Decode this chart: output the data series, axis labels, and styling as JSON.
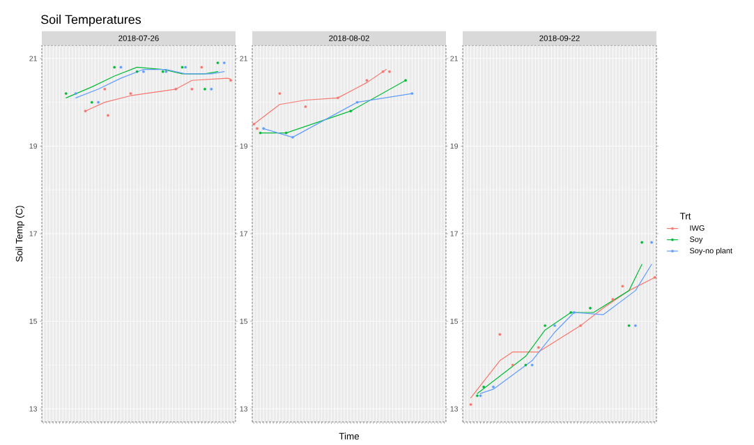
{
  "chart_data": [
    {
      "type": "scatter",
      "title": "Soil Temperatures",
      "subtitle": "2018-07-26",
      "ylabel": "Soil Temp (C)",
      "ylim": [
        12.7,
        21.3
      ],
      "yticks": [
        13,
        15,
        17,
        19,
        21
      ],
      "grid": true,
      "tick_labels": "y",
      "marker": "circle",
      "categories": [
        null,
        null,
        null,
        null,
        null,
        null,
        null,
        null,
        null,
        null,
        null,
        null,
        null,
        null,
        null,
        null,
        null,
        null,
        null,
        null,
        null,
        null,
        null,
        null,
        null,
        null,
        null,
        null,
        null,
        null,
        null,
        null,
        null,
        null,
        null,
        null,
        null,
        null,
        null,
        null,
        null,
        null,
        null,
        null,
        null,
        null,
        null,
        null,
        null,
        null,
        null,
        null,
        null,
        null,
        null,
        null,
        null,
        null,
        null,
        null
      ],
      "series": [
        {
          "color": "#f8766d",
          "values": [
            null,
            null,
            null,
            null,
            null,
            null,
            null,
            null,
            null,
            null,
            null,
            null,
            null,
            19.8,
            null,
            null,
            null,
            null,
            null,
            20.3,
            19.7,
            null,
            null,
            null,
            null,
            null,
            null,
            20.2,
            null,
            null,
            null,
            null,
            null,
            null,
            null,
            null,
            null,
            null,
            null,
            null,
            null,
            20.3,
            null,
            null,
            null,
            null,
            20.3,
            null,
            null,
            20.8,
            null,
            null,
            null,
            null,
            null,
            null,
            null,
            null,
            20.5,
            null
          ]
        },
        {
          "color": "#00ba38",
          "values": [
            null,
            null,
            null,
            null,
            null,
            null,
            null,
            20.2,
            null,
            null,
            null,
            null,
            null,
            null,
            null,
            20.0,
            null,
            null,
            null,
            null,
            null,
            null,
            20.8,
            null,
            null,
            null,
            null,
            null,
            null,
            20.7,
            null,
            null,
            null,
            null,
            null,
            null,
            null,
            20.7,
            null,
            null,
            null,
            null,
            null,
            20.8,
            null,
            null,
            null,
            null,
            null,
            null,
            20.3,
            null,
            null,
            null,
            20.9,
            null,
            null,
            null,
            null,
            null
          ]
        },
        {
          "color": "#619cff",
          "values": [
            null,
            null,
            null,
            null,
            null,
            null,
            null,
            null,
            null,
            null,
            20.2,
            null,
            null,
            null,
            null,
            null,
            null,
            20.0,
            null,
            null,
            null,
            null,
            null,
            null,
            20.8,
            null,
            null,
            null,
            null,
            null,
            null,
            20.7,
            null,
            null,
            null,
            null,
            null,
            null,
            20.7,
            null,
            null,
            null,
            null,
            null,
            20.8,
            null,
            null,
            null,
            null,
            null,
            null,
            null,
            20.3,
            null,
            null,
            null,
            20.9,
            null,
            null,
            null
          ]
        },
        {
          "type": "line",
          "marker": "none",
          "color": "#f8766d",
          "values": [
            null,
            null,
            null,
            null,
            null,
            null,
            null,
            null,
            null,
            null,
            null,
            null,
            null,
            19.8,
            null,
            null,
            null,
            null,
            null,
            20.0,
            null,
            null,
            null,
            null,
            null,
            null,
            null,
            20.15,
            null,
            null,
            null,
            null,
            null,
            null,
            null,
            null,
            null,
            null,
            null,
            null,
            null,
            20.3,
            null,
            null,
            null,
            null,
            20.5,
            null,
            null,
            null,
            null,
            null,
            null,
            null,
            null,
            null,
            null,
            20.55,
            20.53,
            null
          ]
        },
        {
          "type": "line",
          "marker": "none",
          "color": "#00ba38",
          "values": [
            null,
            null,
            null,
            null,
            null,
            null,
            null,
            20.1,
            null,
            null,
            null,
            null,
            null,
            null,
            null,
            20.35,
            null,
            null,
            null,
            null,
            null,
            null,
            20.6,
            null,
            null,
            null,
            null,
            null,
            null,
            20.8,
            null,
            null,
            null,
            null,
            null,
            null,
            null,
            20.75,
            null,
            null,
            null,
            null,
            null,
            20.65,
            null,
            null,
            null,
            null,
            null,
            null,
            20.65,
            null,
            null,
            null,
            20.7,
            null,
            null,
            null,
            null,
            null
          ]
        },
        {
          "type": "line",
          "marker": "none",
          "color": "#619cff",
          "values": [
            null,
            null,
            null,
            null,
            null,
            null,
            null,
            null,
            null,
            null,
            20.1,
            null,
            null,
            null,
            null,
            null,
            null,
            20.3,
            null,
            null,
            null,
            null,
            null,
            null,
            20.55,
            null,
            null,
            null,
            null,
            null,
            null,
            20.75,
            null,
            null,
            null,
            null,
            null,
            null,
            20.75,
            null,
            null,
            null,
            null,
            null,
            20.65,
            null,
            null,
            null,
            null,
            null,
            null,
            null,
            20.65,
            null,
            null,
            null,
            20.7,
            null,
            null,
            null
          ]
        }
      ]
    },
    {
      "type": "scatter",
      "subtitle": "2018-08-02",
      "xlabel": "Time",
      "ylim": [
        12.7,
        21.3
      ],
      "yticks": [
        13,
        15,
        17,
        19,
        21
      ],
      "grid": true,
      "marker": "circle",
      "categories": [
        null,
        null,
        null,
        null,
        null,
        null,
        null,
        null,
        null,
        null,
        null,
        null,
        null,
        null,
        null,
        null,
        null,
        null,
        null,
        null,
        null,
        null,
        null,
        null,
        null,
        null,
        null,
        null,
        null,
        null,
        null,
        null,
        null,
        null,
        null,
        null,
        null,
        null,
        null,
        null,
        null,
        null,
        null,
        null,
        null,
        null,
        null,
        null,
        null,
        null,
        null,
        null,
        null,
        null,
        null,
        null,
        null,
        null,
        null,
        null
      ],
      "series": [
        {
          "color": "#f8766d",
          "values": [
            19.5,
            19.4,
            null,
            null,
            null,
            null,
            null,
            null,
            20.2,
            null,
            null,
            null,
            null,
            null,
            null,
            null,
            19.9,
            null,
            null,
            null,
            null,
            null,
            null,
            null,
            null,
            null,
            20.1,
            null,
            null,
            null,
            null,
            null,
            null,
            null,
            null,
            20.5,
            null,
            null,
            null,
            null,
            20.7,
            null,
            20.7,
            null,
            null,
            null,
            null,
            null,
            null,
            null,
            null,
            null,
            null,
            null,
            null,
            null,
            null,
            null,
            null,
            null
          ]
        },
        {
          "color": "#00ba38",
          "values": [
            null,
            null,
            19.3,
            null,
            null,
            null,
            null,
            null,
            null,
            null,
            19.3,
            null,
            null,
            null,
            null,
            null,
            null,
            null,
            null,
            null,
            null,
            null,
            null,
            null,
            null,
            null,
            null,
            null,
            null,
            null,
            19.8,
            null,
            null,
            null,
            null,
            null,
            null,
            null,
            null,
            null,
            null,
            null,
            null,
            null,
            null,
            null,
            null,
            20.5,
            null,
            null,
            null,
            null,
            null,
            null,
            null,
            null,
            null,
            null,
            null,
            null
          ]
        },
        {
          "color": "#619cff",
          "values": [
            null,
            null,
            null,
            19.4,
            null,
            null,
            null,
            null,
            null,
            null,
            null,
            null,
            19.2,
            null,
            null,
            null,
            null,
            null,
            null,
            null,
            null,
            null,
            null,
            null,
            null,
            null,
            null,
            null,
            null,
            null,
            null,
            null,
            20.0,
            null,
            null,
            null,
            null,
            null,
            null,
            null,
            null,
            null,
            null,
            null,
            null,
            null,
            null,
            null,
            null,
            20.2,
            null,
            null,
            null,
            null,
            null,
            null,
            null,
            null,
            null,
            null
          ]
        },
        {
          "type": "line",
          "marker": "none",
          "color": "#f8766d",
          "values": [
            19.5,
            null,
            null,
            null,
            null,
            null,
            null,
            null,
            19.95,
            null,
            null,
            null,
            null,
            null,
            null,
            null,
            20.05,
            null,
            null,
            null,
            null,
            null,
            null,
            null,
            null,
            null,
            20.1,
            null,
            null,
            null,
            null,
            null,
            null,
            null,
            null,
            20.45,
            null,
            null,
            null,
            null,
            null,
            20.75,
            null,
            null,
            null,
            null,
            null,
            null,
            null,
            null,
            null,
            null,
            null,
            null,
            null,
            null,
            null,
            null,
            null,
            null
          ]
        },
        {
          "type": "line",
          "marker": "none",
          "color": "#00ba38",
          "values": [
            null,
            null,
            19.3,
            null,
            null,
            null,
            null,
            null,
            null,
            null,
            19.3,
            null,
            null,
            null,
            null,
            null,
            null,
            null,
            null,
            null,
            null,
            null,
            null,
            null,
            null,
            null,
            null,
            null,
            null,
            null,
            19.8,
            null,
            null,
            null,
            null,
            null,
            null,
            null,
            null,
            null,
            null,
            null,
            null,
            null,
            null,
            null,
            null,
            20.5,
            null,
            null,
            null,
            null,
            null,
            null,
            null,
            null,
            null,
            null,
            null,
            null
          ]
        },
        {
          "type": "line",
          "marker": "none",
          "color": "#619cff",
          "values": [
            null,
            null,
            null,
            19.4,
            null,
            null,
            null,
            null,
            null,
            null,
            null,
            null,
            19.2,
            null,
            null,
            null,
            null,
            null,
            null,
            null,
            null,
            null,
            null,
            null,
            null,
            null,
            null,
            null,
            null,
            null,
            null,
            null,
            20.0,
            null,
            null,
            null,
            null,
            null,
            null,
            null,
            null,
            null,
            null,
            null,
            null,
            null,
            null,
            null,
            null,
            20.2,
            null,
            null,
            null,
            null,
            null,
            null,
            null,
            null,
            null,
            null
          ]
        }
      ]
    },
    {
      "type": "scatter",
      "subtitle": "2018-09-22",
      "legend_title": "Trt",
      "legend": "right",
      "ylim": [
        12.7,
        21.3
      ],
      "yticks": [
        13,
        15,
        17,
        19,
        21
      ],
      "grid": true,
      "marker": "circle",
      "categories": [
        null,
        null,
        null,
        null,
        null,
        null,
        null,
        null,
        null,
        null,
        null,
        null,
        null,
        null,
        null,
        null,
        null,
        null,
        null,
        null,
        null,
        null,
        null,
        null,
        null,
        null,
        null,
        null,
        null,
        null,
        null,
        null,
        null,
        null,
        null,
        null,
        null,
        null,
        null,
        null,
        null,
        null,
        null,
        null,
        null,
        null,
        null,
        null,
        null,
        null,
        null,
        null,
        null,
        null,
        null,
        null,
        null,
        null,
        null,
        null
      ],
      "series": [
        {
          "name": "IWG",
          "color": "#f8766d",
          "values": [
            null,
            null,
            13.1,
            null,
            null,
            null,
            null,
            null,
            null,
            null,
            null,
            14.7,
            null,
            null,
            null,
            14.0,
            null,
            null,
            null,
            null,
            null,
            null,
            null,
            14.4,
            null,
            null,
            null,
            null,
            null,
            null,
            null,
            null,
            null,
            null,
            null,
            null,
            14.9,
            null,
            null,
            null,
            null,
            null,
            null,
            null,
            null,
            null,
            15.5,
            null,
            null,
            15.8,
            null,
            null,
            null,
            null,
            null,
            null,
            null,
            null,
            null,
            16.0
          ]
        },
        {
          "name": "Soy",
          "color": "#00ba38",
          "values": [
            null,
            null,
            null,
            null,
            13.3,
            null,
            13.5,
            null,
            null,
            null,
            null,
            null,
            null,
            null,
            null,
            null,
            null,
            null,
            null,
            14.0,
            null,
            null,
            null,
            null,
            null,
            14.9,
            null,
            null,
            null,
            null,
            null,
            null,
            null,
            15.2,
            null,
            null,
            null,
            null,
            null,
            15.3,
            null,
            null,
            null,
            null,
            null,
            null,
            null,
            null,
            null,
            null,
            null,
            14.9,
            null,
            null,
            null,
            16.8,
            null,
            null,
            null,
            null
          ]
        },
        {
          "name": "Soy-no plant",
          "color": "#619cff",
          "values": [
            null,
            null,
            null,
            null,
            null,
            13.3,
            null,
            null,
            null,
            13.5,
            null,
            null,
            null,
            null,
            null,
            null,
            null,
            null,
            null,
            null,
            null,
            14.0,
            null,
            null,
            null,
            null,
            null,
            null,
            14.9,
            null,
            null,
            null,
            null,
            null,
            15.2,
            null,
            null,
            null,
            null,
            null,
            null,
            null,
            null,
            null,
            null,
            null,
            null,
            null,
            null,
            null,
            null,
            null,
            null,
            14.9,
            null,
            null,
            null,
            null,
            16.8,
            null
          ]
        },
        {
          "type": "line",
          "marker": "none",
          "color": "#f8766d",
          "values": [
            null,
            null,
            13.25,
            null,
            null,
            null,
            null,
            null,
            null,
            null,
            null,
            14.1,
            null,
            null,
            null,
            14.3,
            null,
            null,
            null,
            null,
            null,
            null,
            null,
            14.3,
            null,
            null,
            null,
            null,
            null,
            null,
            null,
            null,
            null,
            null,
            null,
            null,
            14.9,
            null,
            null,
            null,
            null,
            null,
            null,
            15.3,
            null,
            null,
            null,
            null,
            null,
            null,
            null,
            15.7,
            null,
            null,
            null,
            null,
            null,
            null,
            null,
            16.0
          ]
        },
        {
          "type": "line",
          "marker": "none",
          "color": "#00ba38",
          "values": [
            null,
            null,
            null,
            null,
            13.35,
            null,
            null,
            null,
            null,
            null,
            null,
            null,
            null,
            null,
            null,
            null,
            null,
            null,
            null,
            14.2,
            null,
            null,
            null,
            null,
            null,
            14.8,
            null,
            null,
            null,
            null,
            null,
            null,
            null,
            15.2,
            null,
            null,
            null,
            null,
            null,
            null,
            15.2,
            null,
            null,
            null,
            null,
            null,
            null,
            null,
            null,
            null,
            null,
            15.7,
            null,
            null,
            null,
            16.3,
            null,
            null,
            null,
            null
          ]
        },
        {
          "type": "line",
          "marker": "none",
          "color": "#619cff",
          "values": [
            null,
            null,
            null,
            null,
            null,
            13.35,
            null,
            null,
            null,
            13.45,
            null,
            null,
            null,
            null,
            null,
            null,
            null,
            null,
            null,
            null,
            null,
            14.1,
            null,
            null,
            null,
            null,
            null,
            null,
            14.75,
            null,
            null,
            null,
            null,
            null,
            15.2,
            null,
            null,
            null,
            null,
            null,
            null,
            null,
            null,
            15.15,
            null,
            null,
            null,
            null,
            null,
            null,
            null,
            null,
            null,
            15.7,
            null,
            null,
            null,
            null,
            16.3,
            null
          ]
        }
      ]
    }
  ]
}
